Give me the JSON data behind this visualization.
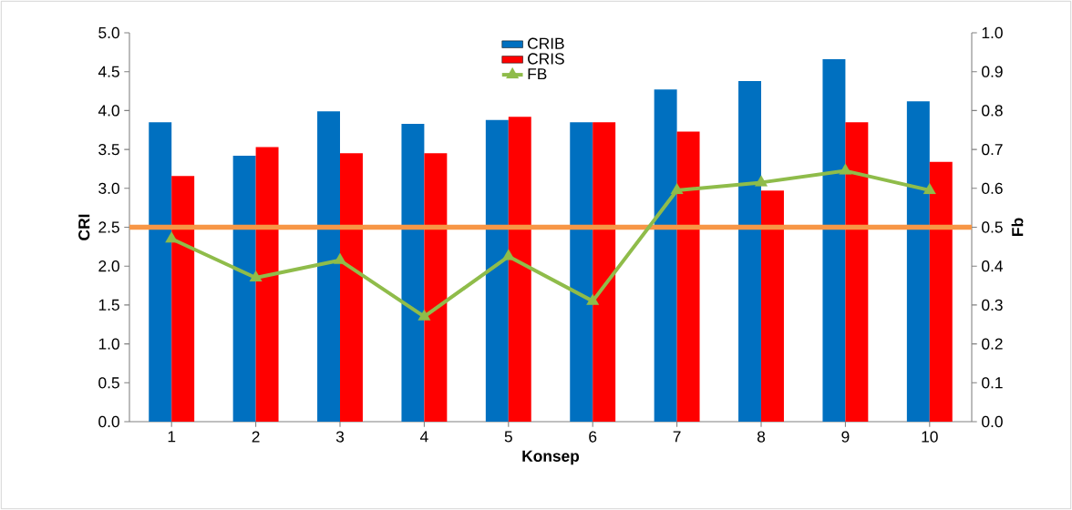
{
  "chart_data": {
    "type": "bar",
    "xlabel": "Konsep",
    "ylabel": "CRI",
    "y2label": "Fb",
    "categories": [
      "1",
      "2",
      "3",
      "4",
      "5",
      "6",
      "7",
      "8",
      "9",
      "10"
    ],
    "series": [
      {
        "name": "CRIB",
        "color": "#0070c0",
        "values": [
          3.85,
          3.42,
          3.99,
          3.83,
          3.88,
          3.85,
          4.27,
          4.38,
          4.66,
          4.12
        ]
      },
      {
        "name": "CRIS",
        "color": "#ff0000",
        "values": [
          3.16,
          3.53,
          3.45,
          3.45,
          3.92,
          3.85,
          3.73,
          2.97,
          3.85,
          3.34
        ]
      },
      {
        "name": "FB",
        "type": "line",
        "axis": "y2",
        "color": "#8fbc4a",
        "marker": "triangle",
        "values": [
          0.47,
          0.37,
          0.415,
          0.27,
          0.425,
          0.31,
          0.595,
          0.615,
          0.645,
          0.595
        ]
      }
    ],
    "ylim": [
      0,
      5
    ],
    "yticks": [
      {
        "value": 0,
        "label": "0.0"
      },
      0.5,
      {
        "value": 1,
        "label": "1.0"
      },
      1.5,
      {
        "value": 2,
        "label": "2.0"
      },
      2.5,
      {
        "value": 3,
        "label": "3.0"
      },
      3.5,
      {
        "value": 4,
        "label": "4.0"
      },
      4.5,
      {
        "value": 5,
        "label": "5.0"
      }
    ],
    "y2lim": [
      0,
      1
    ],
    "y2ticks": [
      {
        "value": 0,
        "label": "0.0"
      },
      0.1,
      0.2,
      0.3,
      0.4,
      0.5,
      0.6,
      0.7,
      0.8,
      0.9,
      {
        "value": 1,
        "label": "1.0"
      }
    ],
    "ref_lines": [
      {
        "axis": "y2",
        "value": 0.5,
        "color": "#f79646"
      }
    ],
    "legend": "top"
  }
}
